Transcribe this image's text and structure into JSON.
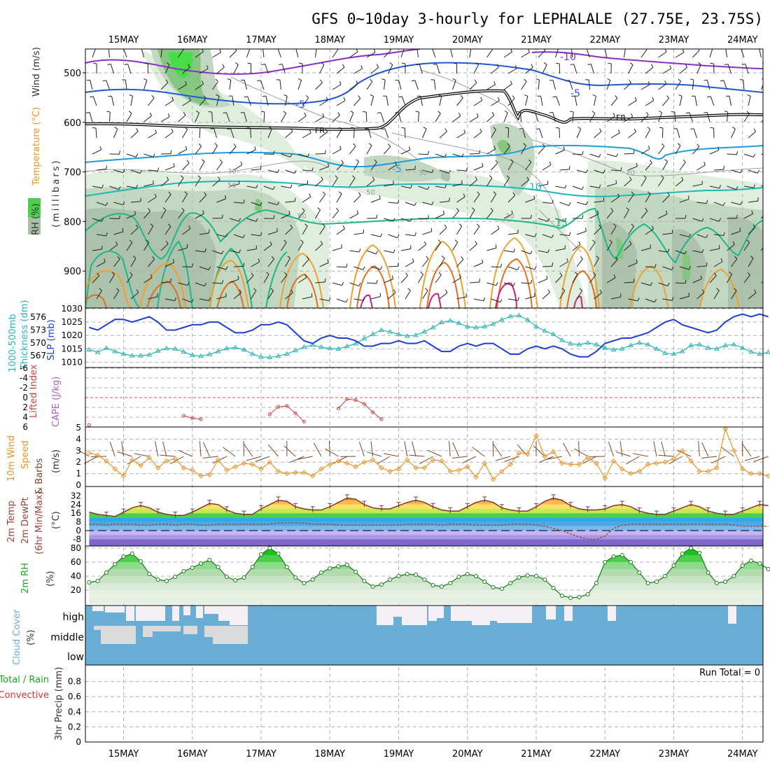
{
  "title": "GFS 0~10day 3-hourly for LEPHALALE (27.75E, 23.75S)",
  "dates": [
    "15MAY",
    "16MAY",
    "17MAY",
    "18MAY",
    "19MAY",
    "20MAY",
    "21MAY",
    "22MAY",
    "23MAY",
    "24MAY"
  ],
  "colors": {
    "slp": "#1e3fd6",
    "thickness": "#2ab5b5",
    "lifted": "#d04040",
    "wind10m": "#e8962a",
    "barb": "#7a4a2a",
    "rh": "#1aa81a",
    "cloud": "#6aaed6",
    "clear": "#f4f0f6",
    "tempArea": "#ffb84d"
  },
  "panels": {
    "upper": {
      "ylabels": [
        "Wind (m/s)",
        "Temperature (°C)",
        "(millibars)",
        "RH (%)"
      ],
      "pressure_ticks": [
        500,
        600,
        700,
        800,
        900
      ],
      "contour_labels": {
        "minus10": "-10",
        "minus5a": "-5",
        "minus5b": "-5",
        "minus5c": "-5",
        "ten": "10",
        "fifteen": "15",
        "fr1": "FR",
        "fr2": "FR",
        "rh30a": "30",
        "rh30b": "30",
        "rh30c": "30",
        "rh50a": "50",
        "rh50b": "50",
        "rh50c": "50",
        "rh10": "10"
      }
    },
    "slp": {
      "ylabels": [
        "1000-500mb",
        "Thickness (dm)",
        "SLP (mb)"
      ],
      "thickness_ticks": [
        576,
        573,
        570,
        567
      ],
      "slp_ticks": [
        1030,
        1025,
        1020,
        1015,
        1010
      ]
    },
    "li": {
      "ylabels": [
        "Lifted Index",
        "CAPE (J/kg)"
      ],
      "ticks": [
        "-6",
        "-4",
        "-2",
        "0",
        "2",
        "4",
        "6"
      ]
    },
    "wind": {
      "ylabels": [
        "10m Wind",
        "Speed",
        "& Barbs",
        "(m/s)"
      ],
      "ticks": [
        0,
        1,
        2,
        3,
        4,
        5
      ]
    },
    "temp": {
      "ylabels": [
        "2m Temp",
        "2m DewPt",
        "(6hr Min/Max)",
        "(°C)"
      ],
      "ticks": [
        32,
        24,
        16,
        8,
        0,
        -8
      ]
    },
    "rh2m": {
      "ylabels": [
        "2m RH",
        "(%)"
      ],
      "ticks": [
        80,
        60,
        40,
        20
      ]
    },
    "cloud": {
      "ylabels": [
        "Cloud Cover",
        "(%)"
      ],
      "levels": [
        "high",
        "middle",
        "low"
      ]
    },
    "precip": {
      "ylabels": [
        "Total / Rain",
        "Convective",
        "3hr Precip (mm)"
      ],
      "ticks": [
        "0.8",
        "0.6",
        "0.4",
        "0.2",
        "0"
      ],
      "run_total": "Run Total = 0"
    }
  },
  "chart_data": {
    "type": "line",
    "x": [
      "14MAY 12Z",
      "14MAY 15Z",
      "14MAY 18Z",
      "14MAY 21Z",
      "15MAY 00Z",
      "15MAY 03Z",
      "15MAY 06Z",
      "15MAY 09Z",
      "15MAY 12Z",
      "15MAY 15Z",
      "15MAY 18Z",
      "15MAY 21Z",
      "16MAY 00Z",
      "16MAY 03Z",
      "16MAY 06Z",
      "16MAY 09Z",
      "16MAY 12Z",
      "16MAY 15Z",
      "16MAY 18Z",
      "16MAY 21Z",
      "17MAY 00Z",
      "17MAY 03Z",
      "17MAY 06Z",
      "17MAY 09Z",
      "17MAY 12Z",
      "17MAY 15Z",
      "17MAY 18Z",
      "17MAY 21Z",
      "18MAY 00Z",
      "18MAY 03Z",
      "18MAY 06Z",
      "18MAY 09Z",
      "18MAY 12Z",
      "18MAY 15Z",
      "18MAY 18Z",
      "18MAY 21Z",
      "19MAY 00Z",
      "19MAY 03Z",
      "19MAY 06Z",
      "19MAY 09Z",
      "19MAY 12Z",
      "19MAY 15Z",
      "19MAY 18Z",
      "19MAY 21Z",
      "20MAY 00Z",
      "20MAY 03Z",
      "20MAY 06Z",
      "20MAY 09Z",
      "20MAY 12Z",
      "20MAY 15Z",
      "20MAY 18Z",
      "20MAY 21Z",
      "21MAY 00Z",
      "21MAY 03Z",
      "21MAY 06Z",
      "21MAY 09Z",
      "21MAY 12Z",
      "21MAY 15Z",
      "21MAY 18Z",
      "21MAY 21Z",
      "22MAY 00Z",
      "22MAY 03Z",
      "22MAY 06Z",
      "22MAY 09Z",
      "22MAY 12Z",
      "22MAY 15Z",
      "22MAY 18Z",
      "22MAY 21Z",
      "23MAY 00Z",
      "23MAY 03Z",
      "23MAY 06Z",
      "23MAY 09Z",
      "23MAY 12Z",
      "23MAY 15Z",
      "23MAY 18Z",
      "23MAY 21Z",
      "24MAY 00Z",
      "24MAY 03Z",
      "24MAY 06Z",
      "24MAY 09Z"
    ],
    "series": [
      {
        "name": "SLP (mb)",
        "values": [
          1023,
          1022,
          1024,
          1026,
          1026,
          1025,
          1026,
          1027,
          1025,
          1022,
          1022,
          1023,
          1024,
          1024,
          1025,
          1025,
          1023,
          1021,
          1021,
          1022,
          1024,
          1024,
          1025,
          1024,
          1021,
          1018,
          1017,
          1019,
          1020,
          1019,
          1019,
          1018,
          1016,
          1016,
          1017,
          1017,
          1018,
          1017,
          1017,
          1018,
          1016,
          1014,
          1014,
          1016,
          1017,
          1016,
          1017,
          1017,
          1015,
          1013,
          1013,
          1015,
          1016,
          1015,
          1016,
          1015,
          1013,
          1012,
          1012,
          1014,
          1017,
          1018,
          1019,
          1019,
          1020,
          1021,
          1023,
          1025,
          1026,
          1024,
          1023,
          1022,
          1021,
          1022,
          1025,
          1027,
          1028,
          1027,
          1028,
          1027
        ]
      },
      {
        "name": "1000-500mb Thickness (dm)",
        "values": [
          568.4,
          567.8,
          568.8,
          568.0,
          567.4,
          567.0,
          567.0,
          567.2,
          568.1,
          568.7,
          568.6,
          567.9,
          567.1,
          566.9,
          567.3,
          568.0,
          568.7,
          568.9,
          568.4,
          567.4,
          566.7,
          566.6,
          566.9,
          567.4,
          568.2,
          569.0,
          569.5,
          569.0,
          568.7,
          568.6,
          569.2,
          569.8,
          571.0,
          572.0,
          573.0,
          572.6,
          572.0,
          571.6,
          571.8,
          572.6,
          573.6,
          574.8,
          575.2,
          574.6,
          573.8,
          573.6,
          573.8,
          574.4,
          575.4,
          576.2,
          576.4,
          575.4,
          573.8,
          572.8,
          572.0,
          570.6,
          569.8,
          569.6,
          570.0,
          569.6,
          568.8,
          568.4,
          568.6,
          569.4,
          570.0,
          569.6,
          568.6,
          567.6,
          567.4,
          568.0,
          569.4,
          569.6,
          568.8,
          568.6,
          569.4,
          569.6,
          568.8,
          567.9,
          567.4,
          567.8
        ]
      },
      {
        "name": "Lifted Index",
        "values": [
          5.6,
          null,
          null,
          null,
          null,
          null,
          null,
          null,
          null,
          null,
          null,
          3.7,
          4.2,
          4.4,
          null,
          null,
          null,
          null,
          null,
          null,
          null,
          3.4,
          1.9,
          1.7,
          3.2,
          4.9,
          null,
          null,
          null,
          2.2,
          0.3,
          0.5,
          1.3,
          3.0,
          4.4,
          null,
          null,
          null,
          null,
          null,
          null,
          null,
          null,
          null,
          null,
          null,
          null,
          null,
          null,
          null,
          null,
          null,
          null,
          null,
          null,
          null,
          null,
          null,
          null,
          null,
          null,
          null,
          null,
          null,
          null,
          null,
          null,
          null,
          null,
          null,
          null,
          null,
          null,
          null,
          null,
          null,
          null,
          null,
          null,
          null
        ]
      },
      {
        "name": "10m Wind Speed (m/s)",
        "values": [
          2.8,
          2.6,
          2.1,
          1.4,
          0.8,
          2.2,
          1.7,
          2.4,
          1.5,
          2.1,
          2.3,
          1.5,
          1.3,
          0.8,
          0.9,
          2.2,
          1.3,
          1.6,
          1.9,
          1.8,
          1.4,
          2.0,
          1.2,
          1.0,
          1.1,
          1.1,
          0.8,
          1.4,
          1.8,
          2.1,
          1.9,
          1.6,
          2.0,
          2.2,
          1.5,
          1.2,
          1.4,
          2.2,
          1.5,
          1.5,
          2.2,
          2.1,
          1.2,
          1.3,
          1.6,
          0.7,
          1.9,
          0.5,
          1.2,
          1.8,
          2.8,
          2.7,
          4.3,
          2.5,
          2.9,
          1.9,
          1.8,
          1.8,
          2.4,
          1.9,
          0.6,
          2.1,
          1.4,
          1.0,
          1.2,
          1.8,
          1.9,
          2.0,
          2.3,
          3.0,
          2.1,
          1.2,
          1.2,
          1.5,
          4.9,
          3.0,
          1.4,
          1.0,
          1.0,
          0.8
        ]
      },
      {
        "name": "2m Temp (°C)",
        "values": [
          17,
          15,
          14,
          13,
          17,
          21,
          23,
          21,
          17,
          15,
          14,
          14,
          17,
          21,
          25,
          24,
          19,
          16,
          15,
          15,
          20,
          24,
          28,
          27,
          22,
          20,
          19,
          19,
          22,
          26,
          30,
          29,
          24,
          21,
          20,
          20,
          23,
          26,
          28,
          26,
          22,
          19,
          18,
          18,
          22,
          26,
          28,
          26,
          21,
          19,
          18,
          18,
          22,
          27,
          30,
          28,
          23,
          20,
          19,
          19,
          20,
          23,
          24,
          22,
          18,
          16,
          15,
          15,
          18,
          21,
          24,
          22,
          18,
          16,
          15,
          15,
          18,
          21,
          24,
          23
        ]
      },
      {
        "name": "2m DewPt (°C)",
        "values": [
          6,
          6,
          5,
          6,
          6,
          6,
          5,
          5,
          6,
          6,
          5,
          6,
          6,
          5,
          5,
          6,
          6,
          6,
          6,
          6,
          6,
          6,
          7,
          7,
          7,
          7,
          6,
          6,
          6,
          5,
          5,
          5,
          5,
          5,
          5,
          5,
          5,
          6,
          6,
          6,
          6,
          5,
          6,
          6,
          6,
          5,
          5,
          5,
          5,
          6,
          6,
          6,
          5,
          4,
          2,
          0,
          -3,
          -6,
          -8,
          -8,
          -5,
          2,
          5,
          6,
          6,
          6,
          6,
          6,
          6,
          6,
          6,
          6,
          6,
          6,
          6,
          5,
          4,
          4,
          4,
          4
        ]
      },
      {
        "name": "2m RH (%)",
        "values": [
          31,
          33,
          45,
          57,
          68,
          72,
          61,
          43,
          35,
          33,
          39,
          47,
          52,
          58,
          63,
          53,
          39,
          34,
          38,
          53,
          71,
          80,
          72,
          53,
          38,
          30,
          35,
          45,
          51,
          54,
          56,
          46,
          33,
          25,
          28,
          35,
          40,
          43,
          42,
          35,
          27,
          25,
          30,
          39,
          43,
          40,
          32,
          24,
          22,
          30,
          38,
          41,
          40,
          35,
          23,
          12,
          9,
          10,
          14,
          30,
          60,
          68,
          70,
          60,
          45,
          30,
          32,
          40,
          55,
          72,
          80,
          73,
          45,
          30,
          32,
          40,
          55,
          62,
          58,
          50
        ]
      }
    ],
    "x_date_labels": [
      "15MAY",
      "16MAY",
      "17MAY",
      "18MAY",
      "19MAY",
      "20MAY",
      "21MAY",
      "22MAY",
      "23MAY",
      "24MAY"
    ],
    "slp_range": [
      1010,
      1030
    ],
    "thickness_range": [
      565,
      578
    ],
    "lifted_index_range": [
      6,
      -6
    ],
    "wind_range": [
      0,
      5
    ],
    "temp_range": [
      -14,
      34
    ],
    "rh_range": [
      0,
      85
    ],
    "precip_range": [
      0,
      1.0
    ],
    "run_total_precip_mm": 0,
    "grid": true
  }
}
